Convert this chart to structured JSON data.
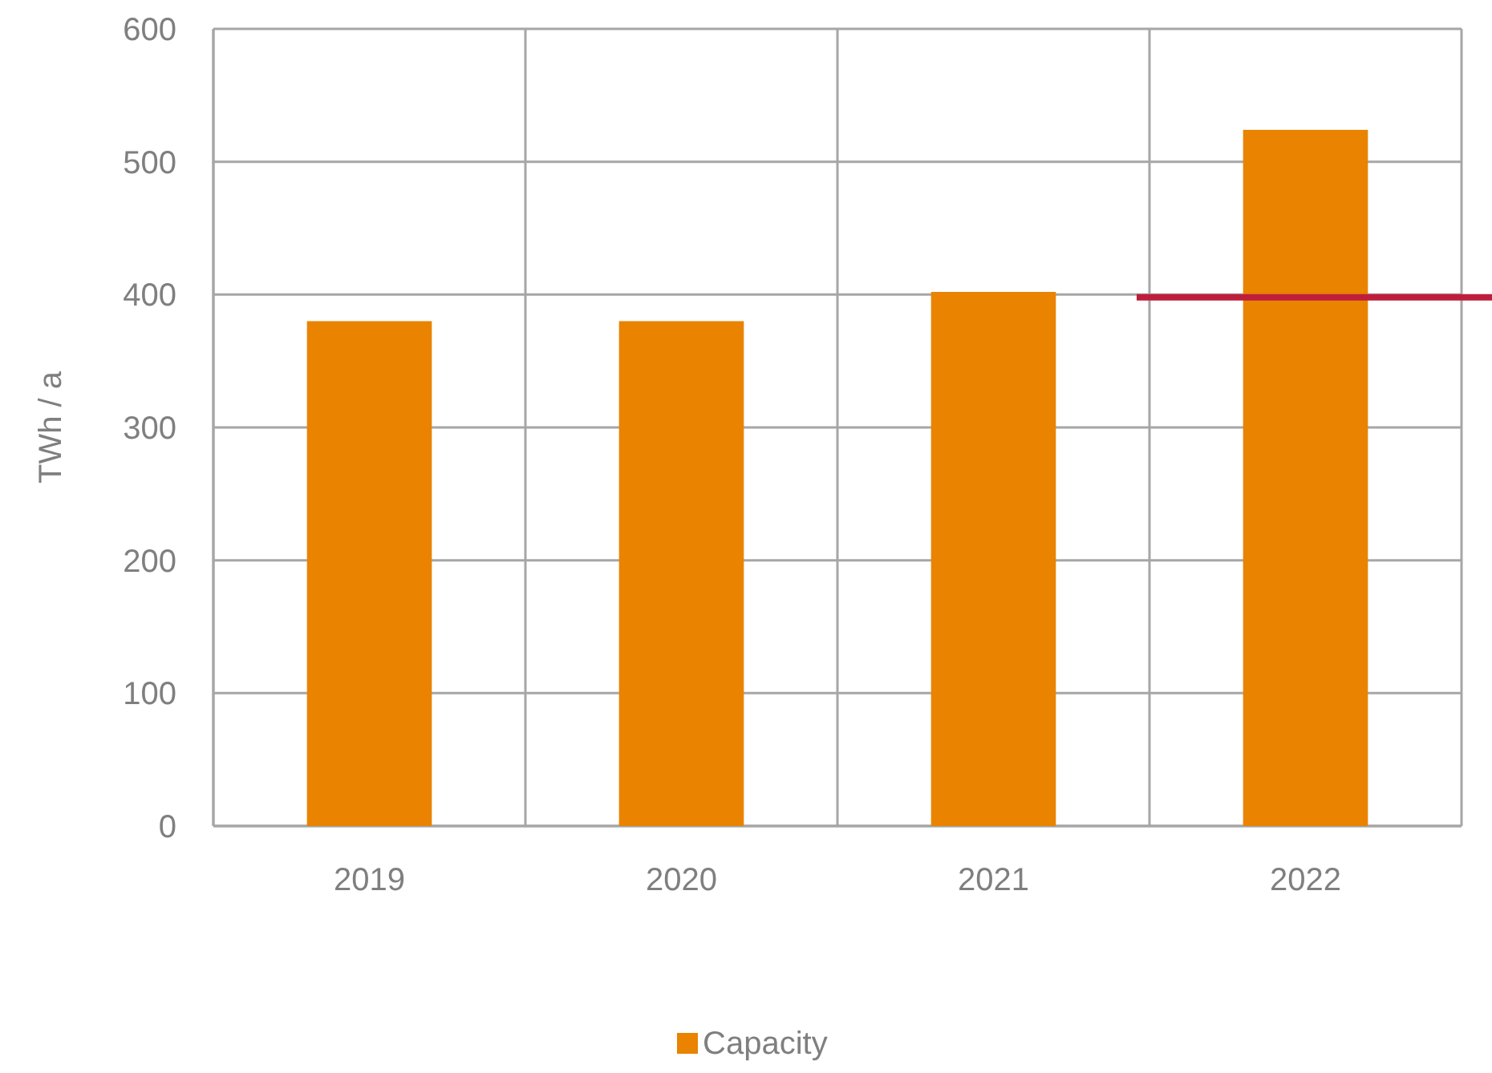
{
  "chart_data": {
    "type": "bar",
    "categories": [
      "2019",
      "2020",
      "2021",
      "2022"
    ],
    "series": [
      {
        "name": "Capacity",
        "color": "#e98300",
        "values": [
          380,
          380,
          402,
          524
        ]
      }
    ],
    "ylabel": "TWh / a",
    "ylim": [
      0,
      600
    ],
    "yticks": [
      0,
      100,
      200,
      300,
      400,
      500,
      600
    ],
    "grid": true,
    "legend": "bottom",
    "ref_lines": [
      {
        "axis": "y",
        "value": 398,
        "color": "#be1e3c"
      }
    ]
  }
}
